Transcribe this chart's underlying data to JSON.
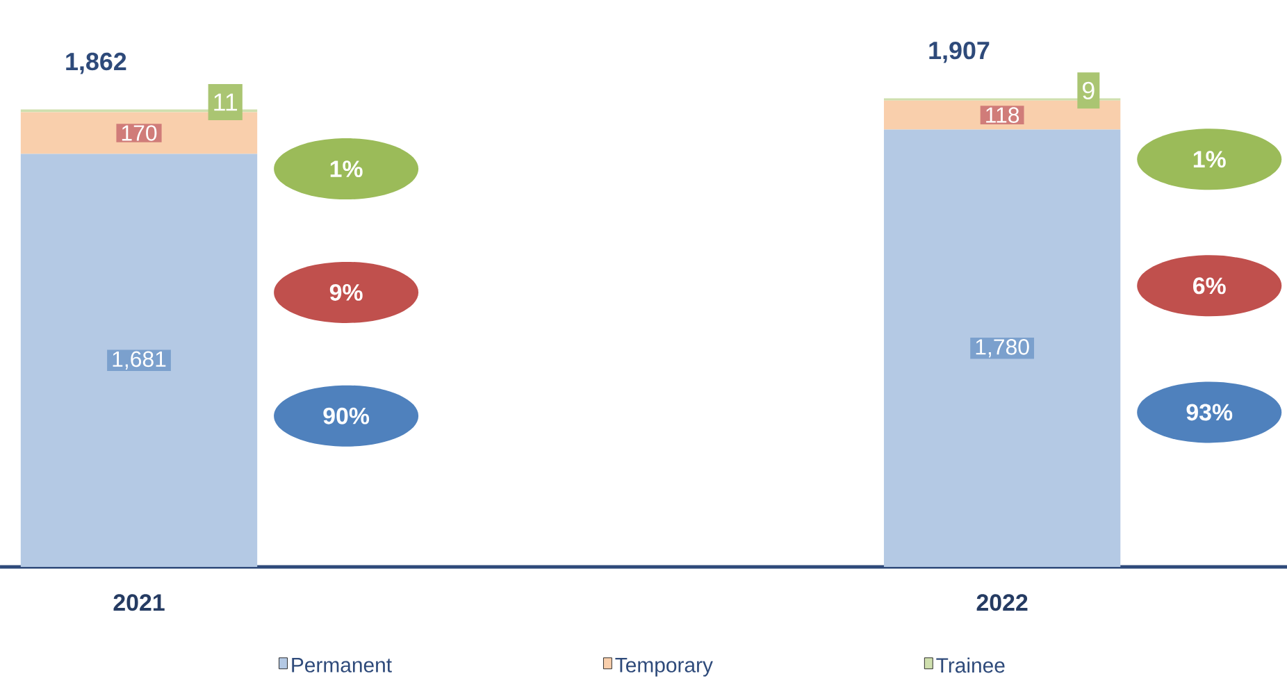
{
  "chart_data": {
    "type": "bar",
    "stacked": true,
    "categories": [
      "2021",
      "2022"
    ],
    "series": [
      {
        "name": "Permanent",
        "color": "#b4c9e4",
        "values": [
          1681,
          1780
        ],
        "value_labels": [
          "1,681",
          "1,780"
        ]
      },
      {
        "name": "Temporary",
        "color": "#f9cfac",
        "values": [
          170,
          118
        ],
        "value_labels": [
          "170",
          "118"
        ]
      },
      {
        "name": "Trainee",
        "color": "#cfdfae",
        "values": [
          11,
          9
        ],
        "value_labels": [
          "11",
          "9"
        ]
      }
    ],
    "totals": [
      "1,862",
      "1,907"
    ],
    "annotations": [
      "90%",
      "9%",
      "1%",
      "93%",
      "6%",
      "1%"
    ],
    "data_labels": true,
    "legend": "bottom"
  }
}
